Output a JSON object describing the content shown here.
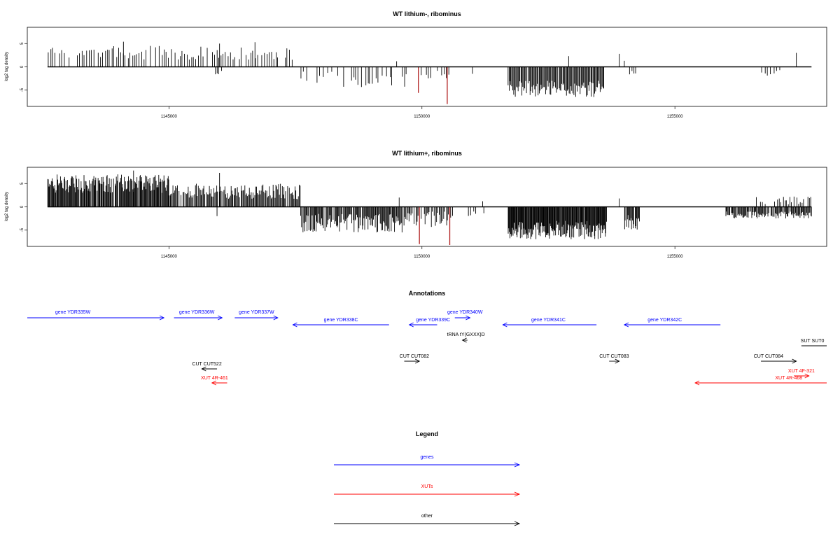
{
  "chart_data": [
    {
      "type": "bar",
      "title": "WT lithium-, ribominus",
      "ylabel": "log2 tag density",
      "xlim": [
        1142200,
        1158000
      ],
      "ylim": [
        -8.5,
        8.5
      ],
      "xticks": [
        1145000,
        1150000,
        1155000
      ],
      "yticks": [
        -5,
        0,
        5
      ],
      "baseline_x": [
        1142600,
        1157700
      ],
      "highlight_color": "#b22222",
      "segments": [
        {
          "from": 1142600,
          "to": 1147450,
          "min": 1.5,
          "max": 4.5,
          "step": 45,
          "sign": 1,
          "p": 0.85
        },
        {
          "from": 1145900,
          "to": 1146050,
          "min": 0.5,
          "max": 2,
          "step": 40,
          "sign": -1,
          "p": 0.8
        },
        {
          "from": 1147600,
          "to": 1149700,
          "min": 1,
          "max": 4.5,
          "step": 40,
          "sign": -1,
          "p": 0.65
        },
        {
          "from": 1149800,
          "to": 1150550,
          "min": 0.5,
          "max": 2.5,
          "step": 45,
          "sign": -1,
          "p": 0.55
        },
        {
          "from": 1151700,
          "to": 1153600,
          "min": 3,
          "max": 6.5,
          "step": 18,
          "sign": -1,
          "p": 0.98
        },
        {
          "from": 1154100,
          "to": 1154250,
          "min": 0.5,
          "max": 2,
          "step": 40,
          "sign": -1,
          "p": 0.9
        },
        {
          "from": 1156700,
          "to": 1157100,
          "min": 0.5,
          "max": 2,
          "step": 60,
          "sign": -1,
          "p": 0.6
        }
      ],
      "spikes": [
        {
          "x": 1144100,
          "y": 5.4
        },
        {
          "x": 1146000,
          "y": 5.0
        },
        {
          "x": 1146700,
          "y": 5.3
        },
        {
          "x": 1149500,
          "y": 1.2
        },
        {
          "x": 1151000,
          "y": -1.5
        },
        {
          "x": 1152900,
          "y": 2.3
        },
        {
          "x": 1153900,
          "y": 2.8
        },
        {
          "x": 1154000,
          "y": 1.3
        },
        {
          "x": 1157400,
          "y": 3.0
        },
        {
          "x": 1149930,
          "y": -5.6,
          "highlight": true
        },
        {
          "x": 1150500,
          "y": -8.0,
          "highlight": true
        }
      ]
    },
    {
      "type": "bar",
      "title": "WT lithium+, ribominus",
      "ylabel": "log2 tag density",
      "xlim": [
        1142200,
        1158000
      ],
      "ylim": [
        -8.5,
        8.5
      ],
      "xticks": [
        1145000,
        1150000,
        1155000
      ],
      "yticks": [
        -5,
        0,
        5
      ],
      "baseline_x": [
        1142600,
        1157700
      ],
      "highlight_color": "#b22222",
      "segments": [
        {
          "from": 1142600,
          "to": 1145000,
          "min": 3,
          "max": 7,
          "step": 14,
          "sign": 1,
          "p": 0.97
        },
        {
          "from": 1145000,
          "to": 1147600,
          "min": 1.5,
          "max": 5,
          "step": 18,
          "sign": 1,
          "p": 0.92
        },
        {
          "from": 1147600,
          "to": 1149600,
          "min": 1.5,
          "max": 5.5,
          "step": 16,
          "sign": -1,
          "p": 0.92
        },
        {
          "from": 1149600,
          "to": 1150600,
          "min": 1,
          "max": 4.5,
          "step": 20,
          "sign": -1,
          "p": 0.8
        },
        {
          "from": 1150800,
          "to": 1151300,
          "min": 0.5,
          "max": 2,
          "step": 50,
          "sign": -1,
          "p": 0.5
        },
        {
          "from": 1151700,
          "to": 1153650,
          "min": 3,
          "max": 7,
          "step": 12,
          "sign": -1,
          "p": 0.99
        },
        {
          "from": 1154000,
          "to": 1154300,
          "min": 1.5,
          "max": 5.5,
          "step": 14,
          "sign": -1,
          "p": 0.95
        },
        {
          "from": 1156000,
          "to": 1157700,
          "min": 1,
          "max": 2.5,
          "step": 16,
          "sign": -1,
          "p": 0.9
        },
        {
          "from": 1156600,
          "to": 1157700,
          "min": 0.5,
          "max": 2.5,
          "step": 30,
          "sign": 1,
          "p": 0.6
        }
      ],
      "spikes": [
        {
          "x": 1146000,
          "y": 7.3
        },
        {
          "x": 1144300,
          "y": 7.8
        },
        {
          "x": 1145950,
          "y": -2.0
        },
        {
          "x": 1149550,
          "y": 2.0
        },
        {
          "x": 1149950,
          "y": -8.0,
          "highlight": true
        },
        {
          "x": 1150550,
          "y": -8.2,
          "highlight": true
        },
        {
          "x": 1151200,
          "y": 1.2
        },
        {
          "x": 1153900,
          "y": 1.8
        }
      ]
    }
  ],
  "annotations": {
    "title": "Annotations",
    "xlim": [
      1142200,
      1158000
    ],
    "features": [
      {
        "label": "gene YDR335W",
        "from": 1142200,
        "to": 1144900,
        "dir": "right",
        "row": 0,
        "color": "#0000ff",
        "label_at": 1143100
      },
      {
        "label": "gene YDR336W",
        "from": 1145100,
        "to": 1146050,
        "dir": "right",
        "row": 0,
        "color": "#0000ff",
        "label_at": 1145550
      },
      {
        "label": "gene YDR337W",
        "from": 1146300,
        "to": 1147150,
        "dir": "right",
        "row": 0,
        "color": "#0000ff",
        "label_at": 1146730
      },
      {
        "label": "gene YDR338C",
        "from": 1147450,
        "to": 1149350,
        "dir": "left",
        "row": 1,
        "color": "#0000ff",
        "label_at": 1148400
      },
      {
        "label": "gene YDR339C",
        "from": 1149750,
        "to": 1150300,
        "dir": "left",
        "row": 1,
        "color": "#0000ff",
        "label_at": 1150220
      },
      {
        "label": "gene YDR340W",
        "from": 1150650,
        "to": 1150950,
        "dir": "right",
        "row": 0.5,
        "color": "#0000ff",
        "label_at": 1150850
      },
      {
        "label": "gene YDR341C",
        "from": 1151600,
        "to": 1153450,
        "dir": "left",
        "row": 1,
        "color": "#0000ff",
        "label_at": 1152500
      },
      {
        "label": "gene YDR342C",
        "from": 1154000,
        "to": 1155900,
        "dir": "left",
        "row": 1,
        "color": "#0000ff",
        "label_at": 1154800
      },
      {
        "label": "tRNA tY(GXXX)D",
        "from": 1150800,
        "to": 1150900,
        "dir": "left",
        "row": 2,
        "color": "#000000",
        "label_at": 1150870
      },
      {
        "label": "SUT SUT0",
        "from": 1157500,
        "to": 1158000,
        "dir": "none",
        "row": 3,
        "color": "#000000",
        "label_at": 1157950
      },
      {
        "label": "CUT CUT082",
        "from": 1149650,
        "to": 1149950,
        "dir": "right",
        "row": 4,
        "color": "#000000",
        "label_at": 1149850
      },
      {
        "label": "CUT CUT083",
        "from": 1153700,
        "to": 1153900,
        "dir": "right",
        "row": 4,
        "color": "#000000",
        "label_at": 1153800
      },
      {
        "label": "CUT CUT084",
        "from": 1156700,
        "to": 1157400,
        "dir": "right",
        "row": 4,
        "color": "#000000",
        "label_at": 1156850
      },
      {
        "label": "CUT CUT522",
        "from": 1145650,
        "to": 1145950,
        "dir": "left",
        "row": 5,
        "color": "#000000",
        "label_at": 1145750
      },
      {
        "label": "XUT 4F-321",
        "from": 1157350,
        "to": 1157650,
        "dir": "right",
        "row": 6,
        "color": "#ff0000",
        "label_at": 1157500
      },
      {
        "label": "XUT 4R-461",
        "from": 1145850,
        "to": 1146150,
        "dir": "left",
        "row": 6.5,
        "color": "#ff0000",
        "label_at": 1145900
      },
      {
        "label": "XUT 4R-468",
        "from": 1155400,
        "to": 1158000,
        "dir": "left",
        "row": 6.5,
        "color": "#ff0000",
        "label_at": 1157250
      }
    ]
  },
  "legend": {
    "title": "Legend",
    "items": [
      {
        "label": "genes",
        "color": "#0000ff"
      },
      {
        "label": "XUTs",
        "color": "#ff0000"
      },
      {
        "label": "other",
        "color": "#000000"
      }
    ]
  }
}
